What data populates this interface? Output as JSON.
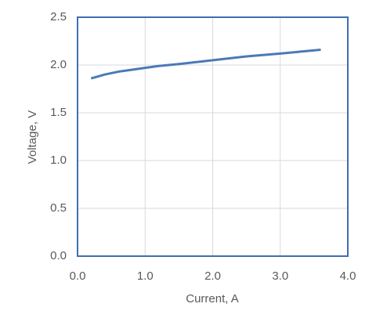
{
  "chart_data": {
    "type": "line",
    "x_label": "Current, A",
    "y_label": "Voltage, V",
    "x": [
      0.2,
      0.3,
      0.4,
      0.6,
      0.8,
      1.0,
      1.2,
      1.5,
      2.0,
      2.5,
      3.0,
      3.6
    ],
    "series": [
      {
        "color": "#4a7ab5",
        "values": [
          1.86,
          1.88,
          1.9,
          1.93,
          1.95,
          1.97,
          1.99,
          2.01,
          2.05,
          2.09,
          2.12,
          2.16
        ]
      }
    ],
    "xlim": [
      0,
      4
    ],
    "ylim": [
      0,
      2.5
    ],
    "xticks": [
      {
        "value": 0,
        "label": "0.0"
      },
      {
        "value": 1,
        "label": "1.0"
      },
      {
        "value": 2,
        "label": "2.0"
      },
      {
        "value": 3,
        "label": "3.0"
      },
      {
        "value": 4,
        "label": "4.0"
      }
    ],
    "yticks": [
      {
        "value": 0,
        "label": "0.0"
      },
      0.5,
      {
        "value": 1,
        "label": "1.0"
      },
      1.5,
      {
        "value": 2,
        "label": "2.0"
      },
      2.5
    ],
    "grid": true,
    "frame_color": "#3f6eb0"
  }
}
